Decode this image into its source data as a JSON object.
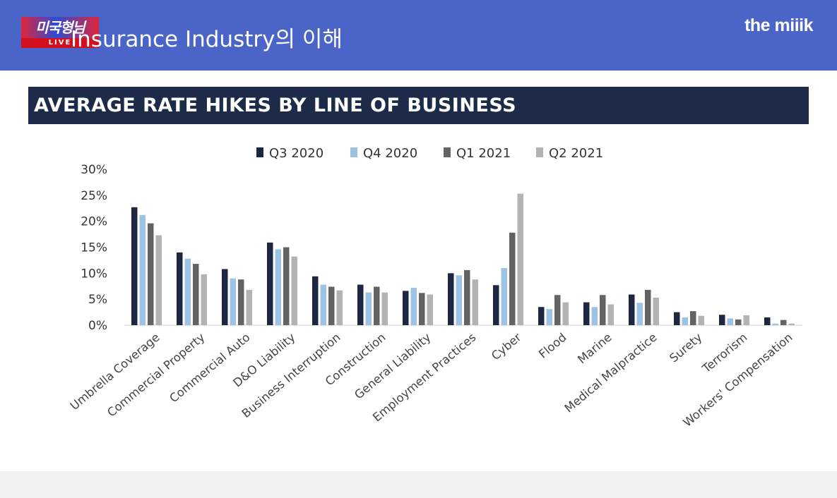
{
  "header": {
    "title": "Insurance Industry의 이해",
    "brand": "the miiik",
    "live_logo_text": "미국형님",
    "live_label": "LIVE"
  },
  "colors": {
    "header_bg": "#4b64c8",
    "banner_bg": "#1e2b48",
    "series": [
      "#1e2740",
      "#9cc3e4",
      "#636363",
      "#b3b3b3"
    ]
  },
  "chart_data": {
    "type": "bar",
    "title": "AVERAGE RATE HIKES BY LINE OF BUSINESS",
    "legend_position": "top-center",
    "ylim": [
      0,
      30
    ],
    "yticks": [
      "0%",
      "5%",
      "10%",
      "15%",
      "20%",
      "25%",
      "30%"
    ],
    "grid": false,
    "categories": [
      "Umbrella Coverage",
      "Commercial Property",
      "Commercial Auto",
      "D&O Liability",
      "Business Interruption",
      "Construction",
      "General Liability",
      "Employment Practices",
      "Cyber",
      "Flood",
      "Marine",
      "Medical Malpractice",
      "Surety",
      "Terrorism",
      "Workers' Compensation"
    ],
    "series": [
      {
        "name": "Q3 2020",
        "values": [
          22.7,
          14,
          10.8,
          15.9,
          9.4,
          7.8,
          6.6,
          10,
          7.7,
          3.5,
          4.4,
          5.9,
          2.5,
          2,
          1.5
        ]
      },
      {
        "name": "Q4 2020",
        "values": [
          21.2,
          12.8,
          9,
          14.6,
          7.8,
          6.3,
          7.2,
          9.6,
          11,
          3.1,
          3.5,
          4.3,
          1.5,
          1.3,
          0.3
        ]
      },
      {
        "name": "Q1 2021",
        "values": [
          19.6,
          11.8,
          8.8,
          15,
          7.4,
          7.4,
          6.2,
          10.6,
          17.8,
          5.8,
          5.8,
          6.8,
          2.7,
          1.1,
          1
        ]
      },
      {
        "name": "Q2 2021",
        "values": [
          17.3,
          9.8,
          6.8,
          13.2,
          6.7,
          6.3,
          5.9,
          8.8,
          25.3,
          4.4,
          4,
          5.3,
          1.8,
          1.9,
          0.3
        ]
      }
    ]
  }
}
